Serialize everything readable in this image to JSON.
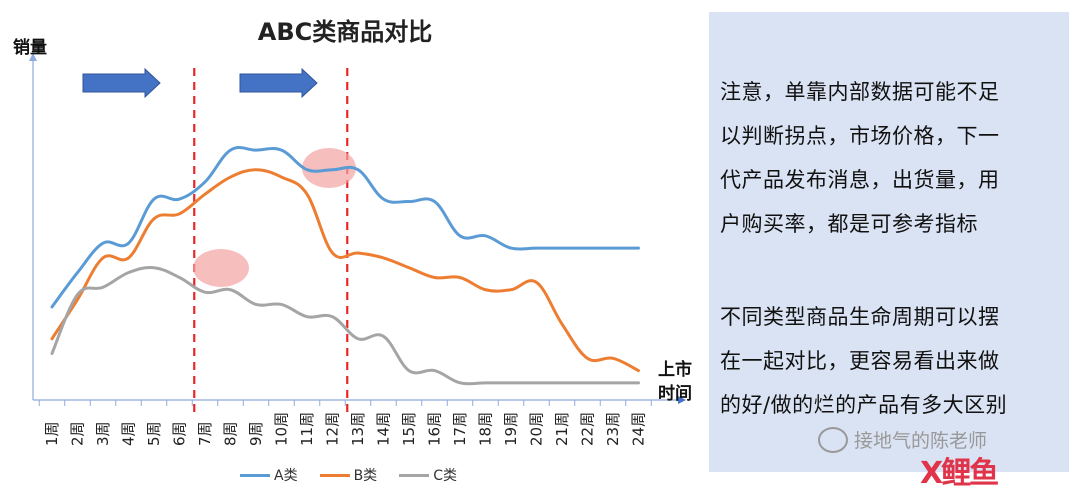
{
  "chart_data": {
    "type": "line",
    "title": "ABC类商品对比",
    "ylabel": "销量",
    "xlabel": "上市时间",
    "categories": [
      "1周",
      "2周",
      "3周",
      "4周",
      "5周",
      "6周",
      "7周",
      "8周",
      "9周",
      "10周",
      "11周",
      "12周",
      "13周",
      "14周",
      "15周",
      "16周",
      "17周",
      "18周",
      "19周",
      "20周",
      "21周",
      "22周",
      "23周",
      "24周"
    ],
    "ylim": [
      0,
      100
    ],
    "legend_position": "bottom",
    "grid": false,
    "series": [
      {
        "name": "A类",
        "color": "#5b9bd5",
        "values": [
          38,
          52,
          64,
          64,
          82,
          82,
          89,
          102,
          102,
          102,
          94,
          94,
          94,
          82,
          81,
          81,
          67,
          67,
          62,
          62,
          62,
          62,
          62,
          62
        ]
      },
      {
        "name": "B类",
        "color": "#ed7d31",
        "values": [
          25,
          41,
          58,
          58,
          74,
          76,
          84,
          91,
          94,
          91,
          84,
          60,
          60,
          58,
          54,
          50,
          50,
          45,
          45,
          48,
          31,
          17,
          17,
          12
        ]
      },
      {
        "name": "C类",
        "color": "#a5a5a5",
        "values": [
          19,
          43,
          46,
          52,
          54,
          50,
          44,
          45,
          39,
          39,
          34,
          34,
          25,
          26,
          12,
          12,
          7,
          7,
          7,
          7,
          7,
          7,
          7,
          7
        ]
      }
    ],
    "annotations": {
      "dividers": [
        "7周",
        "13周"
      ],
      "highlights": [
        "7周",
        "12周"
      ],
      "arrows": 2
    }
  },
  "notes": {
    "line1": "注意，单靠内部数据可能不足",
    "line2": "以判断拐点，市场价格，下一",
    "line3": "代产品发布消息，出货量，用",
    "line4": "户购买率，都是可参考指标",
    "line5": "不同类型商品生命周期可以摆",
    "line6": "在一起对比，更容易看出来做",
    "line7": "的好/做的烂的产品有多大区别"
  },
  "watermark": {
    "text": "接地气的陈老师",
    "logo": "X鲤鱼"
  }
}
